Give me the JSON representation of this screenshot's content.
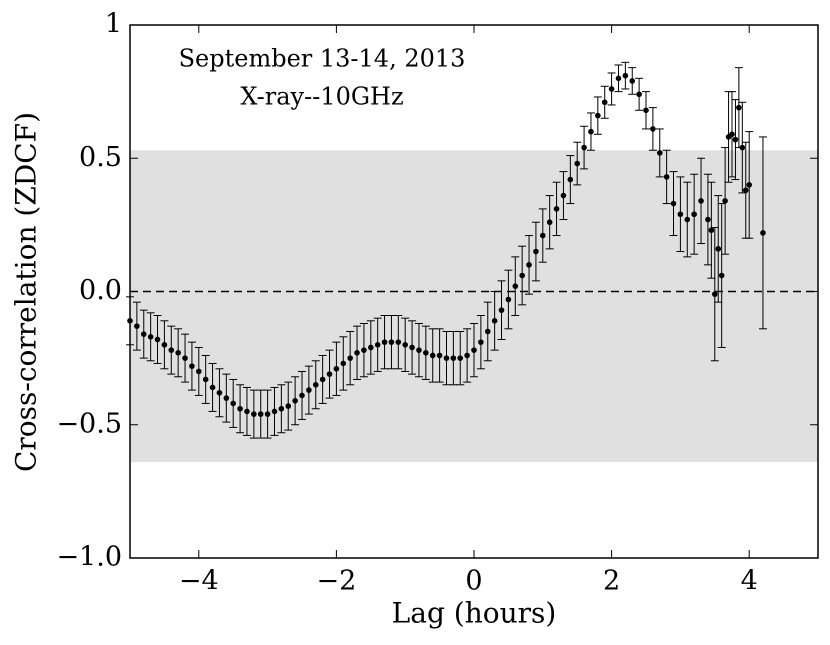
{
  "chart_data": {
    "type": "errorbar",
    "annotations": [
      "September 13-14, 2013",
      "X-ray--10GHz"
    ],
    "x_label": "Lag (hours)",
    "y_label": "Cross-correlation (ZDCF)",
    "xlim": [
      -5,
      5
    ],
    "ylim": [
      -1,
      1
    ],
    "xticks": [
      {
        "value": -4,
        "label": "−4"
      },
      {
        "value": -2,
        "label": "−2"
      },
      0,
      2,
      4
    ],
    "yticks": [
      {
        "value": -1,
        "label": "−1.0"
      },
      {
        "value": -0.5,
        "label": "−0.5"
      },
      {
        "value": 0,
        "label": "0.0"
      },
      0.5,
      1.0
    ],
    "shaded_band": [
      -0.64,
      0.53
    ],
    "band_color": "#e0e0e0",
    "reference_line": 0,
    "color": "#000000",
    "x": [
      -5.0,
      -4.9,
      -4.8,
      -4.7,
      -4.6,
      -4.5,
      -4.4,
      -4.3,
      -4.2,
      -4.1,
      -4.0,
      -3.9,
      -3.8,
      -3.7,
      -3.6,
      -3.5,
      -3.4,
      -3.3,
      -3.2,
      -3.1,
      -3.0,
      -2.9,
      -2.8,
      -2.7,
      -2.6,
      -2.5,
      -2.4,
      -2.3,
      -2.2,
      -2.1,
      -2.0,
      -1.9,
      -1.8,
      -1.7,
      -1.6,
      -1.5,
      -1.4,
      -1.3,
      -1.2,
      -1.1,
      -1.0,
      -0.9,
      -0.8,
      -0.7,
      -0.6,
      -0.5,
      -0.4,
      -0.3,
      -0.2,
      -0.1,
      0.0,
      0.1,
      0.2,
      0.3,
      0.4,
      0.5,
      0.6,
      0.7,
      0.8,
      0.9,
      1.0,
      1.1,
      1.2,
      1.3,
      1.4,
      1.5,
      1.6,
      1.7,
      1.8,
      1.9,
      2.0,
      2.1,
      2.2,
      2.3,
      2.4,
      2.5,
      2.6,
      2.7,
      2.8,
      2.9,
      3.0,
      3.1,
      3.2,
      3.3,
      3.4,
      3.45,
      3.5,
      3.55,
      3.6,
      3.65,
      3.7,
      3.75,
      3.8,
      3.85,
      3.9,
      3.95,
      4.0,
      4.2
    ],
    "values": [
      -0.11,
      -0.13,
      -0.16,
      -0.17,
      -0.18,
      -0.2,
      -0.22,
      -0.23,
      -0.25,
      -0.28,
      -0.3,
      -0.33,
      -0.36,
      -0.38,
      -0.4,
      -0.42,
      -0.44,
      -0.45,
      -0.46,
      -0.46,
      -0.46,
      -0.45,
      -0.44,
      -0.43,
      -0.41,
      -0.39,
      -0.37,
      -0.35,
      -0.33,
      -0.31,
      -0.29,
      -0.27,
      -0.25,
      -0.23,
      -0.22,
      -0.21,
      -0.2,
      -0.19,
      -0.19,
      -0.19,
      -0.2,
      -0.21,
      -0.22,
      -0.23,
      -0.24,
      -0.24,
      -0.25,
      -0.25,
      -0.25,
      -0.24,
      -0.22,
      -0.19,
      -0.15,
      -0.11,
      -0.07,
      -0.03,
      0.02,
      0.06,
      0.1,
      0.15,
      0.21,
      0.26,
      0.31,
      0.36,
      0.42,
      0.48,
      0.54,
      0.6,
      0.66,
      0.71,
      0.76,
      0.8,
      0.81,
      0.79,
      0.74,
      0.68,
      0.61,
      0.52,
      0.43,
      0.33,
      0.29,
      0.27,
      0.29,
      0.34,
      0.27,
      0.23,
      -0.01,
      0.16,
      0.06,
      0.34,
      0.58,
      0.59,
      0.57,
      0.69,
      0.54,
      0.38,
      0.4,
      0.22
    ],
    "errors": [
      0.09,
      0.09,
      0.09,
      0.09,
      0.09,
      0.09,
      0.09,
      0.09,
      0.09,
      0.09,
      0.09,
      0.09,
      0.09,
      0.09,
      0.09,
      0.09,
      0.09,
      0.09,
      0.09,
      0.09,
      0.09,
      0.09,
      0.09,
      0.09,
      0.09,
      0.09,
      0.09,
      0.09,
      0.09,
      0.09,
      0.1,
      0.1,
      0.1,
      0.1,
      0.1,
      0.1,
      0.1,
      0.1,
      0.1,
      0.1,
      0.1,
      0.1,
      0.1,
      0.1,
      0.1,
      0.1,
      0.1,
      0.1,
      0.1,
      0.1,
      0.1,
      0.1,
      0.11,
      0.11,
      0.11,
      0.11,
      0.11,
      0.11,
      0.11,
      0.11,
      0.1,
      0.1,
      0.1,
      0.09,
      0.09,
      0.08,
      0.08,
      0.07,
      0.07,
      0.06,
      0.06,
      0.05,
      0.05,
      0.05,
      0.06,
      0.07,
      0.08,
      0.09,
      0.1,
      0.12,
      0.14,
      0.14,
      0.15,
      0.16,
      0.17,
      0.18,
      0.25,
      0.2,
      0.27,
      0.2,
      0.17,
      0.16,
      0.15,
      0.15,
      0.17,
      0.18,
      0.2,
      0.36
    ]
  }
}
